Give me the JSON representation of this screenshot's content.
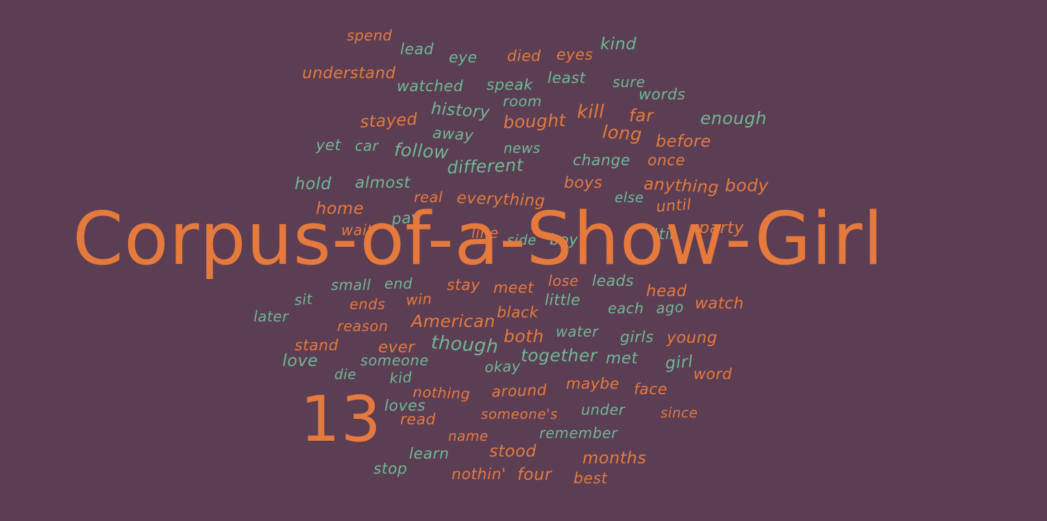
{
  "cloud": {
    "title": "Corpus-of-a-Show-Girl",
    "number": "13",
    "colors": {
      "background": "#5c3e54",
      "orange": "#e67a3c",
      "green": "#6fb894"
    },
    "words": [
      "spend",
      "lead",
      "eye",
      "died",
      "eyes",
      "kind",
      "understand",
      "watched",
      "speak",
      "least",
      "sure",
      "words",
      "room",
      "history",
      "kill",
      "far",
      "enough",
      "stayed",
      "bought",
      "long",
      "before",
      "away",
      "yet",
      "car",
      "follow",
      "news",
      "different",
      "change",
      "once",
      "hold",
      "almost",
      "boys",
      "anything",
      "body",
      "real",
      "everything",
      "else",
      "home",
      "until",
      "pay",
      "wait",
      "party",
      "line",
      "side",
      "boy",
      "'til",
      "small",
      "end",
      "stay",
      "meet",
      "lose",
      "leads",
      "head",
      "sit",
      "ends",
      "win",
      "little",
      "each",
      "ago",
      "watch",
      "later",
      "black",
      "reason",
      "American",
      "both",
      "water",
      "girls",
      "young",
      "stand",
      "ever",
      "though",
      "love",
      "someone",
      "together",
      "met",
      "girl",
      "die",
      "okay",
      "word",
      "kid",
      "maybe",
      "face",
      "nothing",
      "around",
      "loves",
      "someone's",
      "under",
      "since",
      "read",
      "remember",
      "name",
      "stood",
      "learn",
      "months",
      "stop",
      "nothin'",
      "four",
      "best"
    ]
  }
}
